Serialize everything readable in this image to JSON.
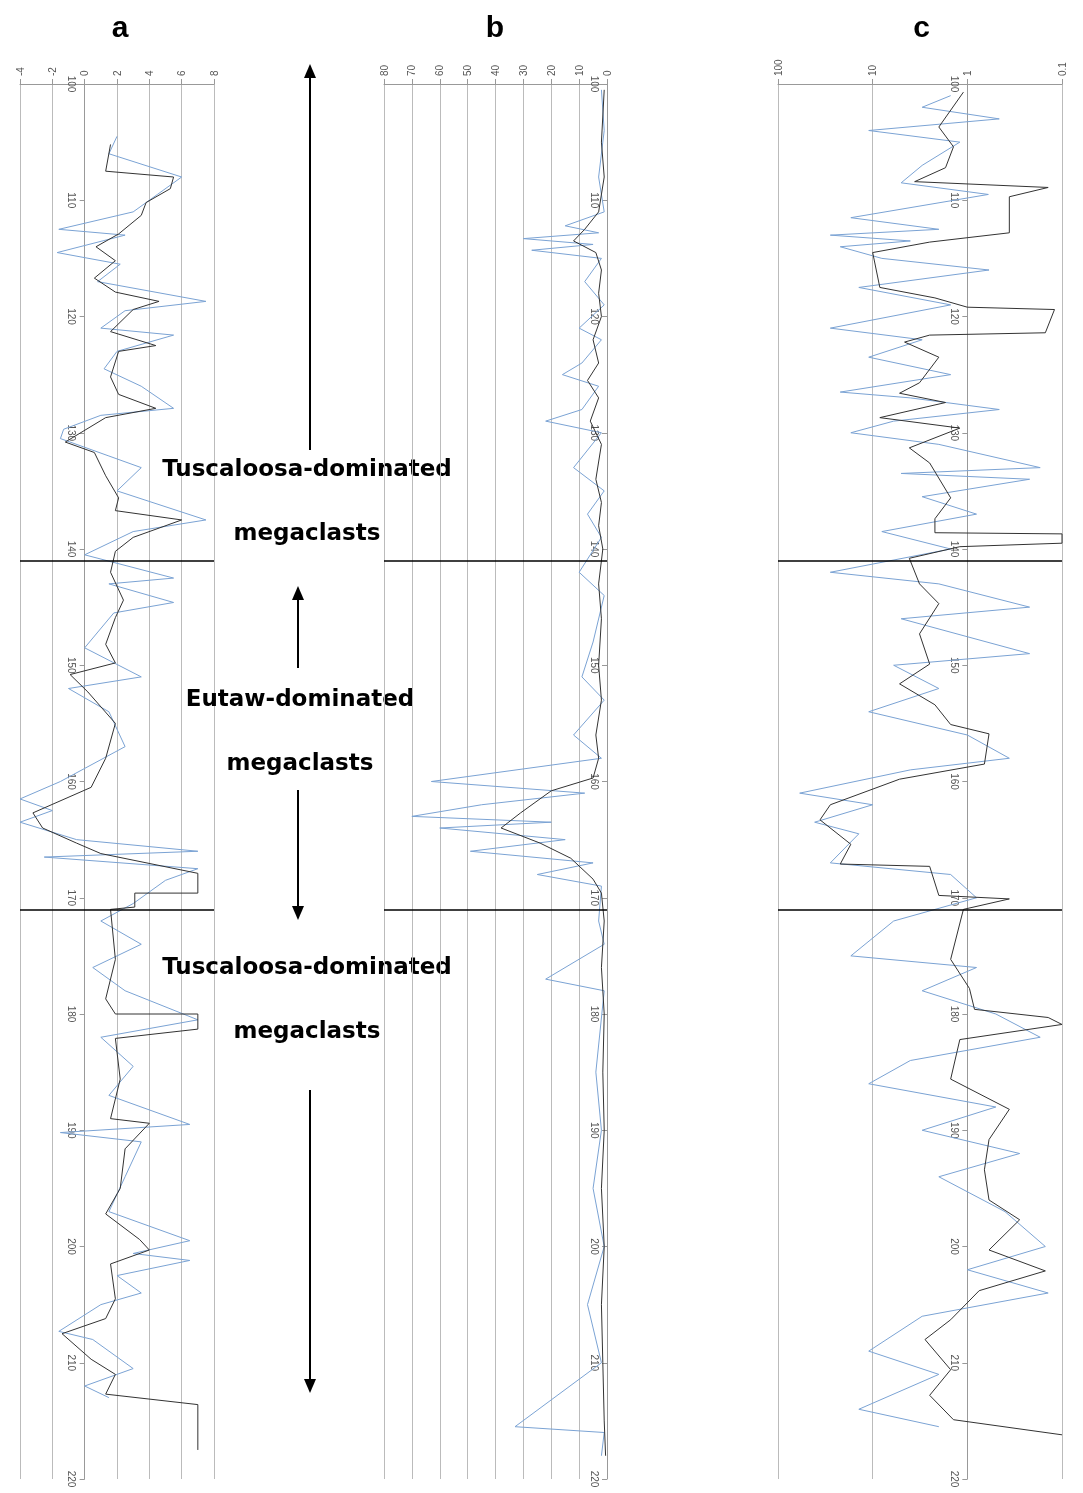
{
  "chart_data": [
    {
      "type": "line",
      "title": "a",
      "xlim": [
        -4,
        8
      ],
      "xticks": [
        -4,
        -2,
        0,
        2,
        4,
        6,
        8
      ],
      "ylim": [
        220,
        100
      ],
      "yticks": [
        100,
        110,
        120,
        130,
        140,
        150,
        160,
        170,
        180,
        190,
        200,
        210,
        220
      ],
      "grid": "x",
      "marker": "none",
      "line_style": "solid",
      "ref_lines": [
        {
          "axis": "y",
          "value": 141,
          "color": "#000000"
        },
        {
          "axis": "y",
          "value": 171,
          "color": "#000000"
        }
      ],
      "annotations": [
        "Tuscaloosa-dominated megaclasts",
        "Eutaw-dominated megaclasts",
        "Tuscaloosa-dominated megaclasts"
      ],
      "series": [
        {
          "color": "#7ba3d4",
          "x": [
            2,
            1.5,
            6,
            4.5,
            3,
            -1.6,
            2.5,
            -1.7,
            2.2,
            0.8,
            7.5,
            2.5,
            1,
            5.5,
            2,
            1.2,
            3.5,
            5.5,
            1,
            -1.3,
            -1.5,
            1.5,
            3.5,
            2,
            7.5,
            3,
            0,
            5.5,
            1.5,
            5.5,
            1.8,
            0,
            3.5,
            -1,
            1.5,
            2.5,
            -1.5,
            -4,
            -2,
            -4,
            -0.5,
            7,
            -2.5,
            7,
            5,
            3,
            1,
            3.5,
            0.5,
            2.5,
            7,
            1,
            3,
            1.5,
            6.5,
            -1.5,
            3.5,
            2.5,
            1.5,
            6.5,
            3,
            6.5,
            2,
            3.5,
            1,
            -1.6,
            0.5,
            3,
            0,
            1.5
          ],
          "values": [
            104.5,
            106,
            108,
            109.5,
            111,
            112.5,
            113,
            114.5,
            115.5,
            117,
            118.7,
            119.5,
            121,
            121.6,
            123,
            124.5,
            126,
            127.9,
            128.5,
            129.7,
            130.5,
            132,
            133,
            135,
            137.5,
            138.5,
            140.5,
            142.5,
            143,
            144.6,
            145.5,
            148.5,
            151,
            152,
            154,
            157,
            160,
            161.5,
            162.5,
            163.5,
            165,
            166,
            166.5,
            167.5,
            168.5,
            170.5,
            172,
            174,
            176,
            178,
            180.5,
            182,
            184.5,
            187,
            189.5,
            190.2,
            191,
            194,
            197,
            199.5,
            200.6,
            201.2,
            202.5,
            204,
            205,
            207.3,
            208,
            210.5,
            212,
            213
          ]
        },
        {
          "color": "#333333",
          "x": [
            1.6,
            1.3,
            5.5,
            5.3,
            3.8,
            3.5,
            2.1,
            0.7,
            1.9,
            0.6,
            1.9,
            4.6,
            3,
            1.6,
            4.4,
            2.1,
            1.6,
            2.1,
            4.4,
            1.3,
            -1.2,
            0.6,
            1.3,
            2.1,
            1.9,
            6,
            3,
            1.9,
            1.6,
            2.4,
            1.9,
            1.3,
            1.9,
            -0.9,
            0.2,
            1.9,
            1.3,
            0.4,
            -3.2,
            -2.6,
            -0.5,
            1,
            7,
            7,
            3.1,
            3.1,
            1.6,
            1.9,
            1.3,
            1.9,
            7,
            7,
            1.9,
            2.2,
            1.6,
            4,
            2.5,
            2.2,
            1.3,
            3.4,
            4,
            1.6,
            1.9,
            1.3,
            -1.4,
            0.4,
            1.9,
            1.3,
            7,
            7
          ],
          "values": [
            105.2,
            107.5,
            108,
            109,
            110.2,
            111.3,
            112.9,
            114,
            115.2,
            116.7,
            117.9,
            118.7,
            119.4,
            121.3,
            122.5,
            123,
            125.2,
            126.7,
            127.9,
            128.7,
            130.8,
            131.7,
            133.7,
            135.6,
            136.7,
            137.5,
            139,
            140.2,
            142,
            144.4,
            145.9,
            148.2,
            149.8,
            150.8,
            152.3,
            155,
            158,
            160.5,
            162.7,
            164,
            165.3,
            166.2,
            167.9,
            169.6,
            169.6,
            170.8,
            171,
            175.3,
            178.7,
            180,
            180,
            181.3,
            182.1,
            185.6,
            189,
            189.4,
            191.6,
            195,
            197.2,
            199.4,
            200.3,
            201.5,
            204.5,
            206.2,
            207.5,
            209.7,
            211,
            212.7,
            213.6,
            217.5
          ]
        }
      ]
    },
    {
      "type": "line",
      "title": "b",
      "xlim": [
        80,
        0
      ],
      "xticks": [
        80,
        70,
        60,
        50,
        40,
        30,
        20,
        10,
        0
      ],
      "ylim": [
        220,
        100
      ],
      "yticks": [
        100,
        110,
        120,
        130,
        140,
        150,
        160,
        170,
        180,
        190,
        200,
        210,
        220
      ],
      "grid": "x",
      "marker": "none",
      "line_style": "solid",
      "ref_lines": [
        {
          "axis": "y",
          "value": 141,
          "color": "#000000"
        },
        {
          "axis": "y",
          "value": 171,
          "color": "#000000"
        }
      ],
      "series": [
        {
          "color": "#7ba3d4",
          "x": [
            2,
            1,
            3,
            1,
            15,
            3,
            30,
            5,
            27,
            2,
            8,
            1,
            10,
            2,
            9,
            16,
            3,
            9,
            22,
            2,
            12,
            1,
            7,
            2,
            10,
            1,
            5,
            9,
            1,
            12,
            2,
            63,
            8,
            45,
            70,
            20,
            60,
            15,
            49,
            5,
            25,
            2,
            3,
            1,
            22,
            1,
            4,
            2,
            5,
            1,
            7,
            2,
            33,
            1,
            2
          ],
          "values": [
            100.5,
            104,
            108,
            111,
            112.2,
            112.8,
            113.3,
            113.8,
            114.3,
            115,
            117,
            119,
            121,
            122,
            124,
            125,
            126,
            128,
            129,
            130,
            133,
            135,
            137,
            139,
            142,
            144,
            148,
            151,
            153,
            156,
            158,
            160,
            161,
            162,
            163,
            163.5,
            164,
            165,
            166,
            167,
            168,
            169,
            172,
            174,
            177,
            178,
            185,
            190,
            195,
            200,
            205,
            210,
            215.5,
            216,
            218
          ]
        },
        {
          "color": "#333333",
          "x": [
            1,
            2,
            1,
            3,
            8,
            12,
            4,
            2,
            3,
            2,
            5,
            3,
            7,
            3,
            6,
            2,
            4,
            2,
            3,
            1.5,
            3,
            2,
            3,
            2,
            4,
            3,
            5,
            20,
            31,
            38,
            24,
            13,
            5,
            2,
            1,
            2,
            1,
            1.5,
            1,
            2,
            1,
            2,
            1.5,
            1,
            0.5
          ],
          "values": [
            100.5,
            105,
            108,
            111,
            112.5,
            113.5,
            114.5,
            116,
            118,
            120,
            122,
            124,
            125.5,
            127,
            129,
            131,
            134,
            136,
            138,
            140,
            143,
            146,
            150,
            153,
            156,
            158,
            159.7,
            160.8,
            162.7,
            164,
            165.3,
            166.6,
            168.4,
            169.6,
            172,
            176,
            180,
            185,
            190,
            195,
            200,
            205,
            210,
            215,
            218
          ]
        }
      ]
    },
    {
      "type": "line",
      "title": "c",
      "log": "x",
      "xlim": [
        100,
        0.1
      ],
      "xticks": [
        100,
        10,
        1,
        0.1
      ],
      "ylim": [
        220,
        100
      ],
      "yticks": [
        100,
        110,
        120,
        130,
        140,
        150,
        160,
        170,
        180,
        190,
        200,
        210,
        220
      ],
      "grid": "x",
      "marker": "none",
      "line_style": "solid",
      "ref_lines": [
        {
          "axis": "y",
          "value": 141,
          "color": "#000000"
        },
        {
          "axis": "y",
          "value": 171,
          "color": "#000000"
        }
      ],
      "series": [
        {
          "color": "#7ba3d4",
          "x": [
            1.5,
            3,
            0.46,
            11,
            1.2,
            3,
            5,
            0.6,
            17,
            2,
            28,
            4,
            22,
            8,
            0.59,
            14,
            1.5,
            28,
            3,
            11,
            1.5,
            22,
            4,
            0.46,
            6,
            17,
            2,
            0.17,
            5,
            0.22,
            3,
            0.8,
            8,
            1.5,
            28,
            2,
            0.22,
            5,
            0.22,
            6,
            2,
            11,
            1,
            0.36,
            4,
            59,
            10,
            41,
            14,
            28,
            1.5,
            0.8,
            6,
            17,
            0.8,
            3,
            0.5,
            0.17,
            4,
            11,
            0.5,
            3,
            0.28,
            2,
            0.4,
            0.15,
            1,
            0.14,
            3,
            11,
            2,
            14,
            2
          ],
          "values": [
            101,
            102,
            103,
            104,
            105,
            107,
            108.5,
            109.5,
            111.5,
            112.5,
            113,
            113.5,
            114,
            115,
            116,
            117.5,
            119,
            121,
            122,
            123.5,
            125,
            126.5,
            127,
            128,
            129,
            130,
            131,
            133,
            133.5,
            134,
            135.5,
            137,
            138.5,
            140,
            142,
            143,
            145,
            146,
            149,
            150,
            152,
            154,
            156,
            158,
            159,
            161,
            162,
            163.5,
            164.5,
            167,
            168,
            170,
            172,
            175,
            176,
            178,
            180,
            182,
            184,
            186,
            188,
            190,
            192,
            194,
            197,
            200,
            202,
            204,
            206,
            209,
            211,
            214,
            215.5
          ]
        },
        {
          "color": "#333333",
          "x": [
            1.1,
            2,
            1.4,
            1.7,
            3.6,
            0.14,
            0.36,
            0.36,
            2.5,
            10,
            8.4,
            2.2,
            1,
            0.12,
            0.15,
            2.5,
            4.6,
            2,
            3.2,
            5.2,
            1.7,
            8.4,
            1.2,
            4.1,
            2.5,
            1.5,
            2.2,
            2.2,
            0.1,
            0.1,
            1.2,
            4.1,
            3.2,
            2,
            3.2,
            2.5,
            5.2,
            2.2,
            1.5,
            0.59,
            0.66,
            5.2,
            28,
            36,
            17,
            22,
            2.5,
            2,
            0.36,
            1.1,
            1.5,
            0.95,
            0.84,
            0.14,
            0.1,
            1.2,
            1.5,
            0.36,
            0.59,
            0.66,
            0.59,
            0.28,
            0.59,
            0.15,
            0.75,
            1.5,
            2.8,
            1.5,
            2.5,
            1.4,
            0.1
          ],
          "values": [
            100.7,
            103.7,
            105.4,
            107.2,
            108.4,
            108.9,
            109.7,
            112.8,
            113.6,
            114.5,
            117.5,
            118.4,
            119.2,
            119.4,
            121.4,
            121.6,
            122.2,
            123.5,
            125.7,
            126.6,
            127.4,
            128.7,
            129.6,
            131.3,
            132.6,
            135.6,
            137.4,
            138.6,
            138.7,
            139.5,
            139.8,
            140.8,
            143,
            144.7,
            147.3,
            149.9,
            151.6,
            153.4,
            155.1,
            155.9,
            158.5,
            159.8,
            162,
            163.3,
            165.4,
            167.1,
            167.3,
            169.8,
            170.1,
            171,
            175.3,
            177.8,
            179.6,
            180.3,
            180.9,
            182.2,
            185.6,
            188.2,
            190.8,
            193.4,
            196,
            197.7,
            200.3,
            202.1,
            203.8,
            206.3,
            208,
            210.6,
            212.8,
            214.9,
            216.2
          ]
        }
      ]
    }
  ]
}
